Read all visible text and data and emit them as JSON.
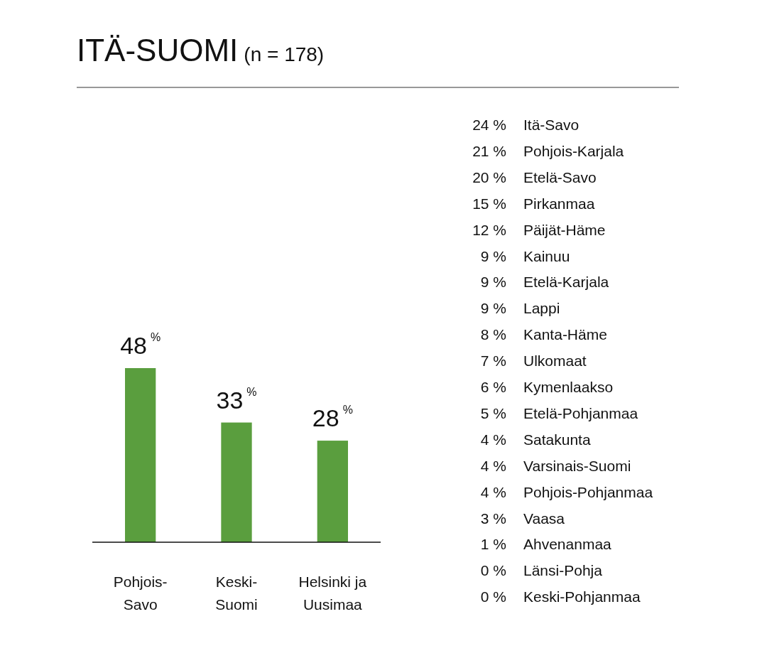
{
  "chart_data": [
    {
      "type": "bar",
      "title": "ITÄ-SUOMI",
      "subtitle": "(n = 178)",
      "categories": [
        "Pohjois-Savo",
        "Keski-Suomi",
        "Helsinki ja Uusimaa"
      ],
      "values": [
        48,
        33,
        28
      ],
      "value_labels": [
        "48$^{%}$",
        "33$^{%}$",
        "28$^{%}$"
      ],
      "color": "#5a9e3e"
    },
    {
      "type": "other",
      "categories": [
        "Itä-Savo",
        "Pohjois-Karjala",
        "Etelä-Savo",
        "Pirkanmaa",
        "Päijät-Häme",
        "Kainuu",
        "Etelä-Karjala",
        "Lappi",
        "Kanta-Häme",
        "Ulkomaat",
        "Kymenlaakso",
        "Etelä-Pohjanmaa",
        "Satakunta",
        "Varsinais-Suomi",
        "Pohjois-Pohjanmaa",
        "Vaasa",
        "Ahvenanmaa",
        "Länsi-Pohja",
        "Keski-Pohjanmaa"
      ],
      "values": [
        24,
        21,
        20,
        15,
        12,
        9,
        9,
        9,
        8,
        7,
        6,
        5,
        4,
        4,
        4,
        3,
        1,
        0,
        0
      ],
      "value_labels": [
        "24 %",
        "21 %",
        "20 %",
        "15 %",
        "12 %",
        "9 %",
        "9 %",
        "9 %",
        "8 %",
        "7 %",
        "6 %",
        "5 %",
        "4 %",
        "4 %",
        "4 %",
        "3 %",
        "1 %",
        "0 %",
        "0 %"
      ]
    }
  ]
}
